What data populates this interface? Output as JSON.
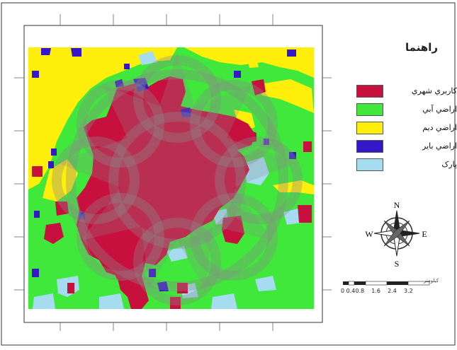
{
  "legend": {
    "title": "راهنما",
    "items": [
      {
        "label": "کاربري شهري",
        "color": "#c8103e"
      },
      {
        "label": "اراضي آبي",
        "color": "#3fe83a"
      },
      {
        "label": "اراضي ديم",
        "color": "#ffef0a"
      },
      {
        "label": "اراضي باير",
        "color": "#3516c9"
      },
      {
        "label": "پارک",
        "color": "#a6dcf0"
      }
    ]
  },
  "north_arrow": {
    "n": "N",
    "s": "S",
    "e": "E",
    "w": "W"
  },
  "scale_bar": {
    "unit": "کيلومتر",
    "ticks": [
      "0",
      "0.4",
      "0.8",
      "1.6",
      "2.4",
      "3.2"
    ],
    "tick_text": "0 0.40.8    1.6    2.4    3.2"
  },
  "colors": {
    "urban": "#c8103e",
    "irrigated": "#3fe83a",
    "dryland": "#ffef0a",
    "barren": "#3516c9",
    "park": "#a6dcf0",
    "watermark": "#8a8a8a"
  }
}
